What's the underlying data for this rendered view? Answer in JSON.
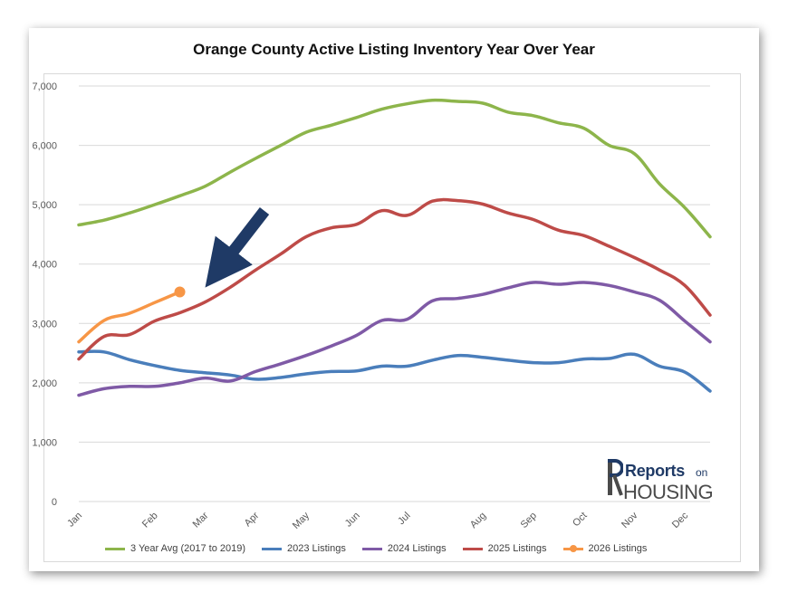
{
  "title": "Orange County Active Listing Inventory Year Over Year",
  "logo": {
    "word1": "Reports",
    "word2": "on",
    "word3": "HOUSING"
  },
  "chart_data": {
    "type": "line",
    "title": "Orange County Active Listing Inventory Year Over Year",
    "xlabel": "",
    "ylabel": "",
    "ylim": [
      0,
      7000
    ],
    "yticks": [
      "0",
      "1,000",
      "2,000",
      "3,000",
      "4,000",
      "5,000",
      "6,000",
      "7,000"
    ],
    "categories": [
      "Jan",
      "Feb",
      "Mar",
      "Apr",
      "May",
      "Jun",
      "Jul",
      "Aug",
      "Sep",
      "Oct",
      "Nov",
      "Dec"
    ],
    "x_positions": [
      0,
      1.5,
      2.5,
      3.5,
      4.5,
      5.5,
      6.5,
      8,
      9,
      10,
      11,
      12
    ],
    "grid": true,
    "legend_position": "bottom",
    "series": [
      {
        "name": "3 Year Avg (2017 to 2019)",
        "color": "#8db54b",
        "points": [
          [
            0,
            4660
          ],
          [
            0.5,
            4740
          ],
          [
            1,
            4860
          ],
          [
            1.5,
            5000
          ],
          [
            2,
            5150
          ],
          [
            2.5,
            5310
          ],
          [
            3,
            5550
          ],
          [
            3.5,
            5780
          ],
          [
            4,
            6000
          ],
          [
            4.5,
            6220
          ],
          [
            5,
            6340
          ],
          [
            5.5,
            6470
          ],
          [
            6,
            6610
          ],
          [
            6.5,
            6700
          ],
          [
            7,
            6760
          ],
          [
            7.5,
            6740
          ],
          [
            8,
            6710
          ],
          [
            8.5,
            6560
          ],
          [
            9,
            6500
          ],
          [
            9.5,
            6380
          ],
          [
            10,
            6290
          ],
          [
            10.5,
            6000
          ],
          [
            11,
            5860
          ],
          [
            11.5,
            5350
          ],
          [
            12,
            4950
          ],
          [
            12.5,
            4460
          ]
        ]
      },
      {
        "name": "2023 Listings",
        "color": "#4a7ebb",
        "points": [
          [
            0,
            2520
          ],
          [
            0.5,
            2520
          ],
          [
            1,
            2390
          ],
          [
            1.5,
            2290
          ],
          [
            2,
            2210
          ],
          [
            2.5,
            2170
          ],
          [
            3,
            2130
          ],
          [
            3.5,
            2060
          ],
          [
            4,
            2090
          ],
          [
            4.5,
            2150
          ],
          [
            5,
            2190
          ],
          [
            5.5,
            2200
          ],
          [
            6,
            2280
          ],
          [
            6.5,
            2280
          ],
          [
            7,
            2380
          ],
          [
            7.5,
            2460
          ],
          [
            8,
            2430
          ],
          [
            8.5,
            2380
          ],
          [
            9,
            2340
          ],
          [
            9.5,
            2340
          ],
          [
            10,
            2400
          ],
          [
            10.5,
            2410
          ],
          [
            11,
            2480
          ],
          [
            11.5,
            2280
          ],
          [
            12,
            2180
          ],
          [
            12.5,
            1860
          ]
        ]
      },
      {
        "name": "2024 Listings",
        "color": "#7f5aa6",
        "points": [
          [
            0,
            1790
          ],
          [
            0.5,
            1900
          ],
          [
            1,
            1940
          ],
          [
            1.5,
            1940
          ],
          [
            2,
            2000
          ],
          [
            2.5,
            2080
          ],
          [
            3,
            2030
          ],
          [
            3.5,
            2190
          ],
          [
            4,
            2320
          ],
          [
            4.5,
            2460
          ],
          [
            5,
            2620
          ],
          [
            5.5,
            2800
          ],
          [
            6,
            3050
          ],
          [
            6.5,
            3070
          ],
          [
            7,
            3380
          ],
          [
            7.5,
            3420
          ],
          [
            8,
            3490
          ],
          [
            8.5,
            3600
          ],
          [
            9,
            3690
          ],
          [
            9.5,
            3660
          ],
          [
            10,
            3690
          ],
          [
            10.5,
            3640
          ],
          [
            11,
            3530
          ],
          [
            11.5,
            3390
          ],
          [
            12,
            3040
          ],
          [
            12.5,
            2690
          ]
        ]
      },
      {
        "name": "2025 Listings",
        "color": "#be4b48",
        "points": [
          [
            0,
            2400
          ],
          [
            0.5,
            2780
          ],
          [
            1,
            2810
          ],
          [
            1.5,
            3040
          ],
          [
            2,
            3180
          ],
          [
            2.5,
            3360
          ],
          [
            3,
            3610
          ],
          [
            3.5,
            3900
          ],
          [
            4,
            4170
          ],
          [
            4.5,
            4460
          ],
          [
            5,
            4610
          ],
          [
            5.5,
            4670
          ],
          [
            6,
            4900
          ],
          [
            6.5,
            4820
          ],
          [
            7,
            5060
          ],
          [
            7.5,
            5070
          ],
          [
            8,
            5010
          ],
          [
            8.5,
            4860
          ],
          [
            9,
            4750
          ],
          [
            9.5,
            4570
          ],
          [
            10,
            4480
          ],
          [
            10.5,
            4300
          ],
          [
            11,
            4110
          ],
          [
            11.5,
            3900
          ],
          [
            12,
            3640
          ],
          [
            12.5,
            3140
          ]
        ]
      },
      {
        "name": "2026 Listings",
        "color": "#f79646",
        "points": [
          [
            0,
            2690
          ],
          [
            0.5,
            3050
          ],
          [
            1,
            3170
          ],
          [
            1.5,
            3350
          ],
          [
            2,
            3530
          ]
        ],
        "marker_last": true
      }
    ]
  }
}
